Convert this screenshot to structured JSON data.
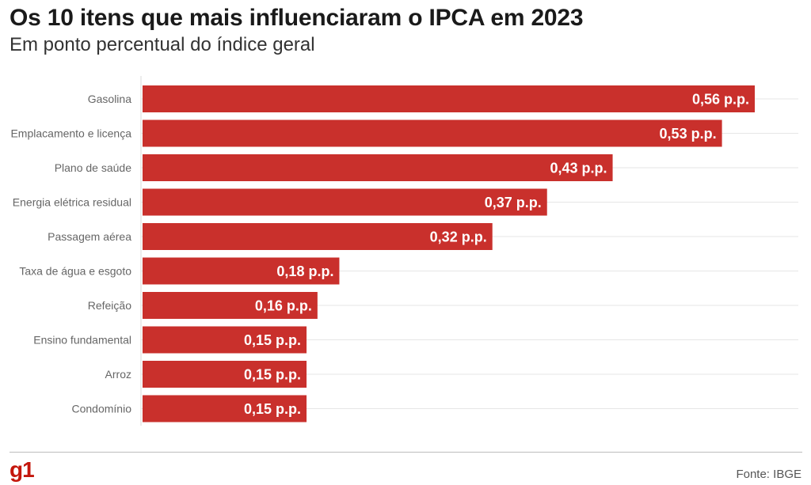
{
  "header": {
    "title": "Os 10 itens que mais influenciaram o IPCA em 2023",
    "subtitle": "Em ponto percentual do índice geral"
  },
  "footer": {
    "logo": "g1",
    "source": "Fonte: IBGE"
  },
  "colors": {
    "bar": "#c9302c",
    "grid": "#e6e6e6",
    "brand": "#c4170c"
  },
  "chart_data": {
    "type": "bar",
    "orientation": "horizontal",
    "categories": [
      "Gasolina",
      "Emplacamento e licença",
      "Plano de saúde",
      "Energia elétrica residual",
      "Passagem aérea",
      "Taxa de água e esgoto",
      "Refeição",
      "Ensino fundamental",
      "Arroz",
      "Condomínio"
    ],
    "values": [
      0.56,
      0.53,
      0.43,
      0.37,
      0.32,
      0.18,
      0.16,
      0.15,
      0.15,
      0.15
    ],
    "value_labels": [
      "0,56 p.p.",
      "0,53 p.p.",
      "0,43 p.p.",
      "0,37 p.p.",
      "0,32 p.p.",
      "0,18 p.p.",
      "0,16 p.p.",
      "0,15 p.p.",
      "0,15 p.p.",
      "0,15 p.p."
    ],
    "title": "Os 10 itens que mais influenciaram o IPCA em 2023",
    "subtitle": "Em ponto percentual do índice geral",
    "xlim": [
      0,
      0.6
    ],
    "grid": true
  }
}
